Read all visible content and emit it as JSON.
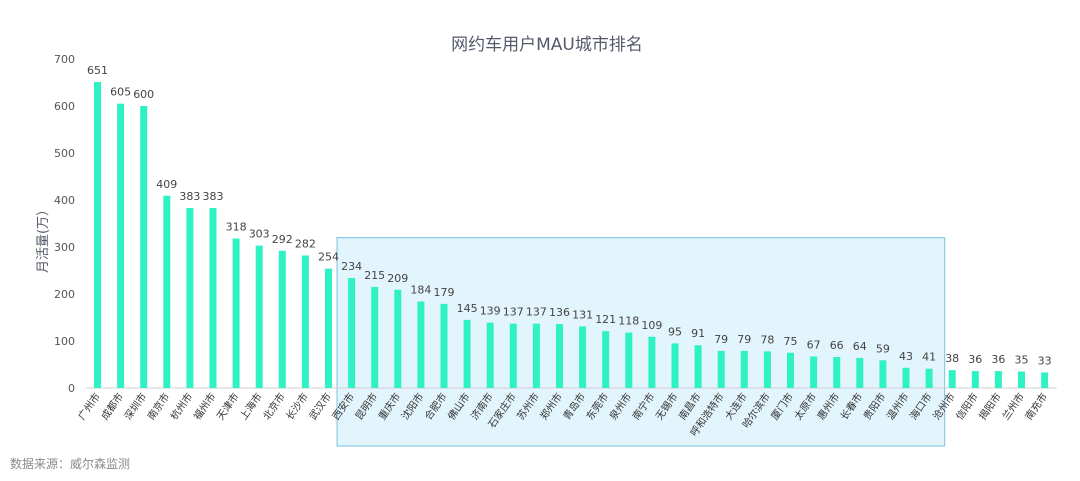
{
  "source_text": "数据来源：威尔森监测",
  "colors": {
    "bar": "#2ef2c4",
    "highlight_fill": "#e3f5fc",
    "highlight_stroke": "#8ccbe3"
  },
  "chart_data": {
    "type": "bar",
    "title": "网约车用户MAU城市排名",
    "xlabel": "",
    "ylabel": "月活量(万）",
    "ylim": [
      0,
      700
    ],
    "yticks": [
      0,
      100,
      200,
      300,
      400,
      500,
      600,
      700
    ],
    "grid": false,
    "legend": "none",
    "highlighted_range": [
      "西安市",
      "海口市"
    ],
    "categories": [
      "广州市",
      "成都市",
      "深圳市",
      "南京市",
      "杭州市",
      "福州市",
      "天津市",
      "上海市",
      "北京市",
      "长沙市",
      "武汉市",
      "西安市",
      "昆明市",
      "重庆市",
      "沈阳市",
      "合肥市",
      "佛山市",
      "济南市",
      "石家庄市",
      "苏州市",
      "郑州市",
      "青岛市",
      "东莞市",
      "泉州市",
      "南宁市",
      "无锡市",
      "南昌市",
      "呼和浩特市",
      "大连市",
      "哈尔滨市",
      "厦门市",
      "太原市",
      "惠州市",
      "长春市",
      "贵阳市",
      "温州市",
      "海口市",
      "沧州市",
      "信阳市",
      "揭阳市",
      "兰州市",
      "南充市"
    ],
    "values": [
      651,
      605,
      600,
      409,
      383,
      383,
      318,
      303,
      292,
      282,
      254,
      234,
      215,
      209,
      184,
      179,
      145,
      139,
      137,
      137,
      136,
      131,
      121,
      118,
      109,
      95,
      91,
      79,
      79,
      78,
      75,
      67,
      66,
      64,
      59,
      43,
      41,
      38,
      36,
      36,
      35,
      33
    ]
  }
}
